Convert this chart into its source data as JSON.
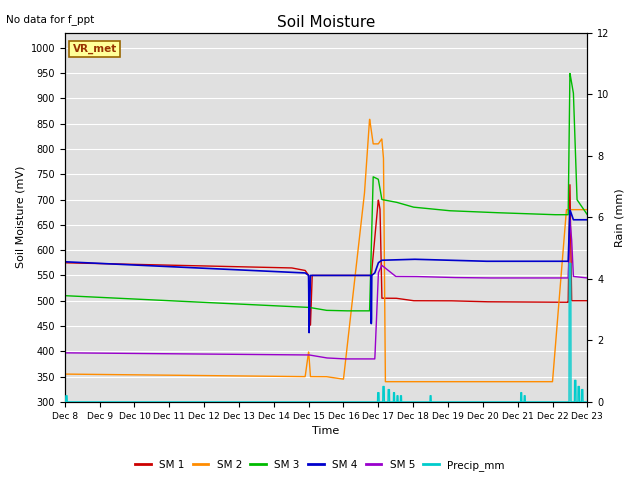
{
  "title": "Soil Moisture",
  "subtitle": "No data for f_ppt",
  "xlabel": "Time",
  "ylabel_left": "Soil Moisture (mV)",
  "ylabel_right": "Rain (mm)",
  "ylim_left": [
    300,
    1030
  ],
  "ylim_right": [
    0,
    12
  ],
  "colors": {
    "SM1": "#cc0000",
    "SM2": "#ff8c00",
    "SM3": "#00bb00",
    "SM4": "#0000cc",
    "SM5": "#9900cc",
    "Precip": "#00cccc"
  },
  "vr_met_box_color": "#ffff99",
  "vr_met_edge_color": "#996600",
  "vr_met_text_color": "#993300",
  "legend_labels": [
    "SM 1",
    "SM 2",
    "SM 3",
    "SM 4",
    "SM 5",
    "Precip_mm"
  ],
  "plot_bg_color": "#e0e0e0"
}
